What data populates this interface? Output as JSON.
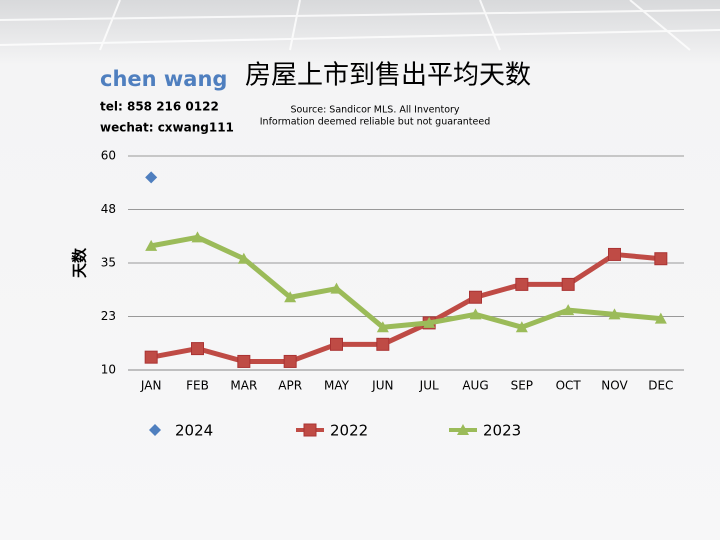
{
  "chart_data": {
    "type": "line",
    "title": "房屋上市到售出平均天数",
    "subtitle": [
      "Source: Sandicor MLS. All Inventory",
      "Information deemed reliable but not guaranteed"
    ],
    "annotations": [
      "chen wang",
      "tel: 858 216 0122",
      "wechat: cxwang111"
    ],
    "ylabel": "天数",
    "categories": [
      "JAN",
      "FEB",
      "MAR",
      "APR",
      "MAY",
      "JUN",
      "JUL",
      "AUG",
      "SEP",
      "OCT",
      "NOV",
      "DEC"
    ],
    "series": [
      {
        "name": "2024",
        "color": "#4f7fbf",
        "marker": "diamond",
        "values": [
          55,
          null,
          null,
          null,
          null,
          null,
          null,
          null,
          null,
          null,
          null,
          null
        ]
      },
      {
        "name": "2022",
        "color": "#bf4b45",
        "marker": "square",
        "values": [
          13,
          15,
          12,
          12,
          16,
          16,
          21,
          27,
          30,
          30,
          37,
          36
        ]
      },
      {
        "name": "2023",
        "color": "#9bbb59",
        "marker": "triangle",
        "values": [
          39,
          41,
          36,
          27,
          29,
          20,
          21,
          23,
          20,
          24,
          23,
          22
        ]
      }
    ],
    "ylim": [
      10,
      60
    ],
    "yticks": [
      10,
      {
        "value": 22.5,
        "label": "23"
      },
      35,
      {
        "value": 47.5,
        "label": "48"
      },
      60
    ],
    "grid": true,
    "legend": "bottom"
  }
}
